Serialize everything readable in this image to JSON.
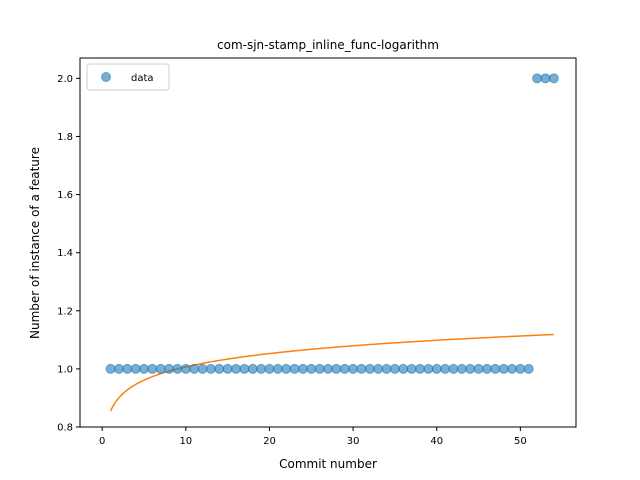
{
  "chart_data": {
    "type": "scatter",
    "title": "com-sjn-stamp_inline_func-logarithm",
    "xlabel": "Commit number",
    "ylabel": "Number of instance of a feature",
    "xlim": [
      -2.65,
      56.65
    ],
    "ylim": [
      0.8,
      2.07
    ],
    "xticks": [
      0,
      10,
      20,
      30,
      40,
      50
    ],
    "yticks": [
      0.8,
      1.0,
      1.2,
      1.4,
      1.6,
      1.8,
      2.0
    ],
    "grid": false,
    "legend": {
      "location": "upper left",
      "entries": [
        "data"
      ]
    },
    "series": [
      {
        "name": "data",
        "kind": "scatter",
        "color": "#1f77b4",
        "x": [
          1,
          2,
          3,
          4,
          5,
          6,
          7,
          8,
          9,
          10,
          11,
          12,
          13,
          14,
          15,
          16,
          17,
          18,
          19,
          20,
          21,
          22,
          23,
          24,
          25,
          26,
          27,
          28,
          29,
          30,
          31,
          32,
          33,
          34,
          35,
          36,
          37,
          38,
          39,
          40,
          41,
          42,
          43,
          44,
          45,
          46,
          47,
          48,
          49,
          50,
          51,
          52,
          53,
          54
        ],
        "y": [
          1,
          1,
          1,
          1,
          1,
          1,
          1,
          1,
          1,
          1,
          1,
          1,
          1,
          1,
          1,
          1,
          1,
          1,
          1,
          1,
          1,
          1,
          1,
          1,
          1,
          1,
          1,
          1,
          1,
          1,
          1,
          1,
          1,
          1,
          1,
          1,
          1,
          1,
          1,
          1,
          1,
          1,
          1,
          1,
          1,
          1,
          1,
          1,
          1,
          1,
          1,
          2,
          2,
          2
        ]
      },
      {
        "kind": "line",
        "color": "#ff7f0e",
        "fit": {
          "model": "a + b*ln(x)",
          "a": 0.855,
          "b": 0.066
        },
        "x_range": [
          1,
          54
        ]
      }
    ]
  }
}
